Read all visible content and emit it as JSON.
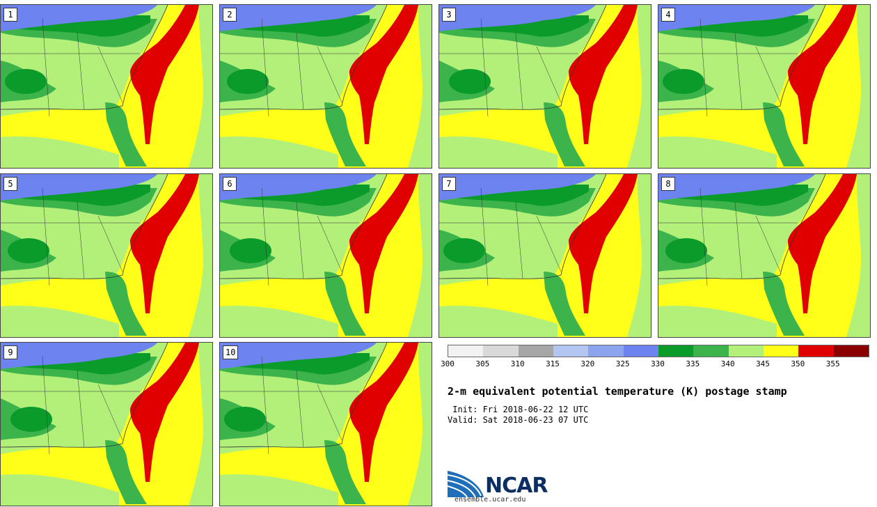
{
  "panels": [
    {
      "label": "1"
    },
    {
      "label": "2"
    },
    {
      "label": "3"
    },
    {
      "label": "4"
    },
    {
      "label": "5"
    },
    {
      "label": "6"
    },
    {
      "label": "7"
    },
    {
      "label": "8"
    },
    {
      "label": "9"
    },
    {
      "label": "10"
    }
  ],
  "colorbar": {
    "ticks": [
      "300",
      "305",
      "310",
      "315",
      "320",
      "325",
      "330",
      "335",
      "340",
      "345",
      "350",
      "355"
    ],
    "colors": [
      "#f2f2f2",
      "#d9d9d9",
      "#a6a6a6",
      "#b3c6f2",
      "#8ca3ee",
      "#6d84f0",
      "#0a9b2a",
      "#3cb44b",
      "#b2f07a",
      "#ffff1a",
      "#e00000",
      "#8b0000"
    ]
  },
  "map_colors": {
    "gulf": "#ffff1a",
    "land_light": "#b2f07a",
    "land_mid": "#3cb44b",
    "land_dark": "#0a9b2a",
    "north": "#6d84f0",
    "plume": "#e00000"
  },
  "title": "2-m equivalent potential temperature (K) postage stamp",
  "init": " Init: Fri 2018-06-22 12 UTC",
  "valid": "Valid: Sat 2018-06-23 07 UTC",
  "logo": {
    "text": "NCAR",
    "url": "ensemble.ucar.edu"
  }
}
